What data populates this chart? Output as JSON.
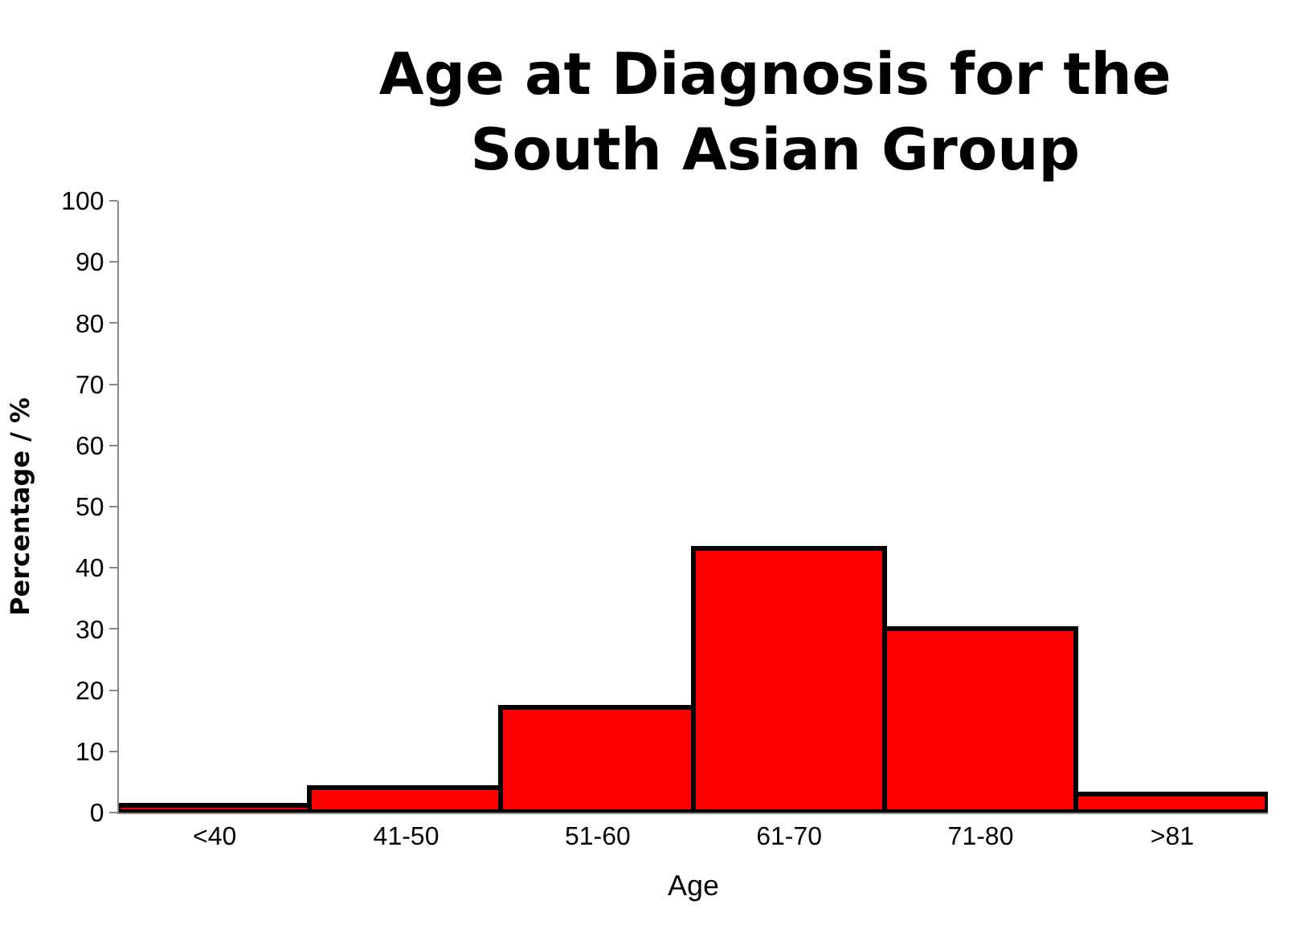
{
  "chart_data": {
    "type": "bar",
    "title": "Age at Diagnosis for the South Asian Group",
    "xlabel": "Age",
    "ylabel": "Percentage / %",
    "categories": [
      "<40",
      "41-50",
      "51-60",
      "61-70",
      "71-80",
      ">81"
    ],
    "values": [
      1,
      4,
      17,
      43,
      30,
      3
    ],
    "color": "#ff0000",
    "ylim": [
      0,
      100
    ],
    "yticks": [
      0,
      10,
      20,
      30,
      40,
      50,
      60,
      70,
      80,
      90,
      100
    ]
  }
}
